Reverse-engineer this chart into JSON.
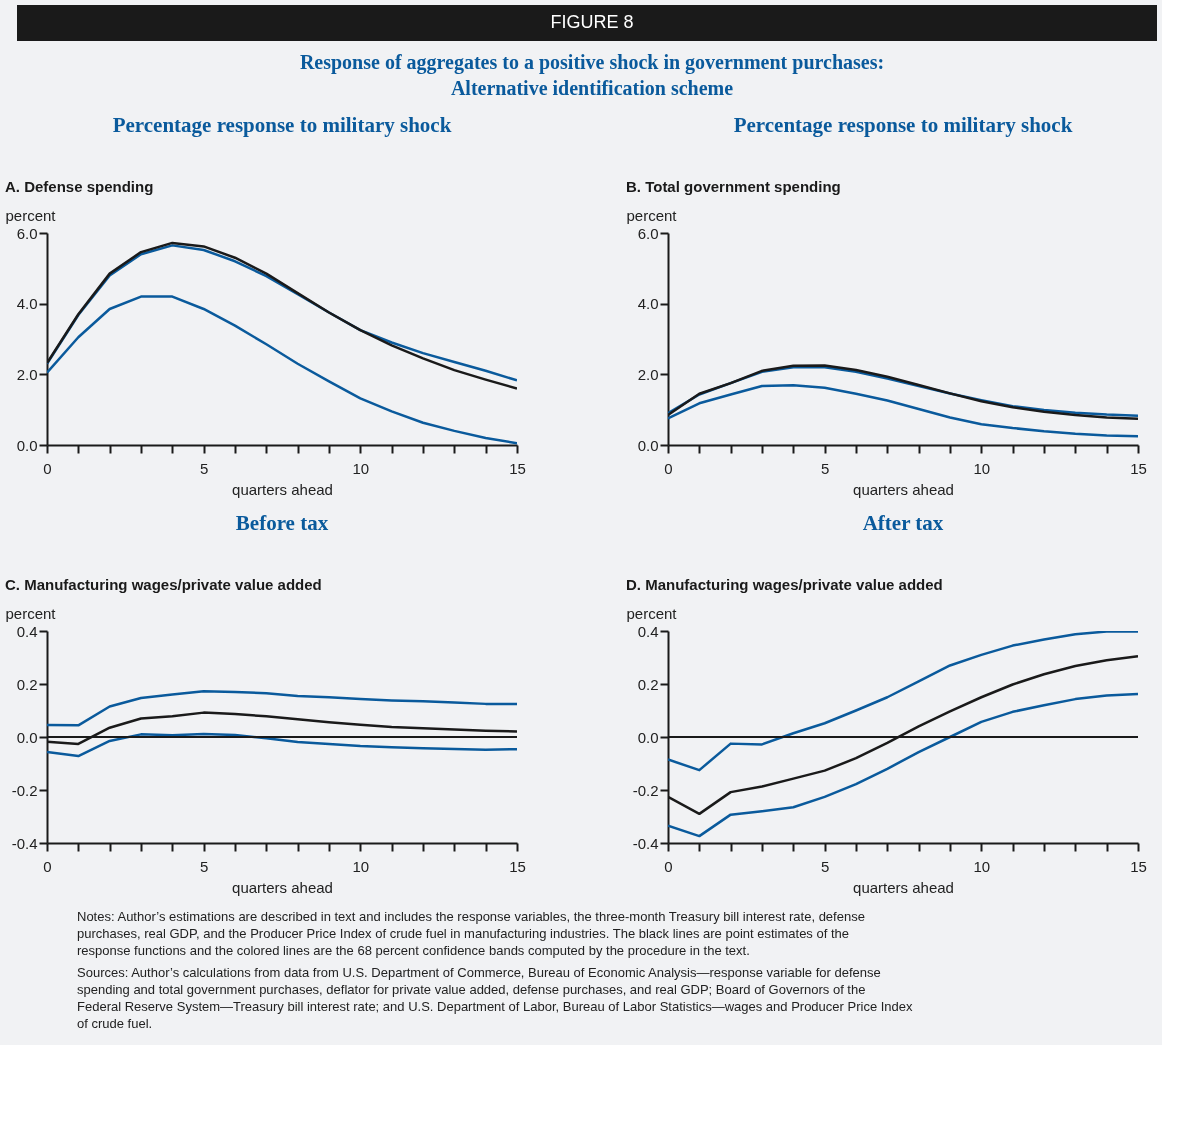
{
  "chart_data": [
    {
      "type": "other",
      "title": "Response of aggregates to a positive shock in government purchases:\nAlternative identification scheme",
      "annotations": [
        "FIGURE 8"
      ]
    },
    {
      "type": "line",
      "title": "Percentage response to military shock",
      "subtitle": "A. Defense spending",
      "ylabel": "percent",
      "xlabel": "quarters ahead",
      "x": [
        0,
        1,
        2,
        3,
        4,
        5,
        6,
        7,
        8,
        9,
        10,
        11,
        12,
        13,
        14,
        15
      ],
      "xlim": [
        0,
        15
      ],
      "ylim": [
        0,
        6
      ],
      "xticks": [
        0,
        {
          "value": 1,
          "label": null
        },
        {
          "value": 2,
          "label": null
        },
        {
          "value": 3,
          "label": null
        },
        {
          "value": 4,
          "label": null
        },
        5,
        {
          "value": 6,
          "label": null
        },
        {
          "value": 7,
          "label": null
        },
        {
          "value": 8,
          "label": null
        },
        {
          "value": 9,
          "label": null
        },
        10,
        {
          "value": 11,
          "label": null
        },
        {
          "value": 12,
          "label": null
        },
        {
          "value": 13,
          "label": null
        },
        {
          "value": 14,
          "label": null
        },
        15
      ],
      "yticks": [
        {
          "value": 0,
          "label": "0.0"
        },
        {
          "value": 2,
          "label": "2.0"
        },
        {
          "value": 4,
          "label": "4.0"
        },
        {
          "value": 6,
          "label": "6.0"
        }
      ],
      "series": [
        {
          "color": "#0a5a9c",
          "values": [
            2.3,
            3.68,
            4.8,
            5.4,
            5.65,
            5.52,
            5.2,
            4.78,
            4.27,
            3.75,
            3.25,
            2.9,
            2.6,
            2.35,
            2.1,
            1.83
          ]
        },
        {
          "color": "#0a5a9c",
          "values": [
            2.05,
            3.05,
            3.85,
            4.2,
            4.2,
            3.85,
            3.38,
            2.85,
            2.3,
            1.8,
            1.32,
            0.95,
            0.63,
            0.4,
            0.2,
            0.05
          ]
        },
        {
          "color": "#1a1a1a",
          "values": [
            2.32,
            3.7,
            4.85,
            5.46,
            5.72,
            5.62,
            5.3,
            4.85,
            4.3,
            3.75,
            3.25,
            2.82,
            2.45,
            2.12,
            1.85,
            1.6
          ]
        }
      ]
    },
    {
      "type": "line",
      "title": "Percentage response to military shock",
      "subtitle": "B. Total government spending",
      "ylabel": "percent",
      "xlabel": "quarters ahead",
      "x": [
        0,
        1,
        2,
        3,
        4,
        5,
        6,
        7,
        8,
        9,
        10,
        11,
        12,
        13,
        14,
        15
      ],
      "xlim": [
        0,
        15
      ],
      "ylim": [
        0,
        6
      ],
      "xticks": [
        0,
        {
          "value": 1,
          "label": null
        },
        {
          "value": 2,
          "label": null
        },
        {
          "value": 3,
          "label": null
        },
        {
          "value": 4,
          "label": null
        },
        5,
        {
          "value": 6,
          "label": null
        },
        {
          "value": 7,
          "label": null
        },
        {
          "value": 8,
          "label": null
        },
        {
          "value": 9,
          "label": null
        },
        10,
        {
          "value": 11,
          "label": null
        },
        {
          "value": 12,
          "label": null
        },
        {
          "value": 13,
          "label": null
        },
        {
          "value": 14,
          "label": null
        },
        15
      ],
      "yticks": [
        {
          "value": 0,
          "label": "0.0"
        },
        {
          "value": 2,
          "label": "2.0"
        },
        {
          "value": 4,
          "label": "4.0"
        },
        {
          "value": 6,
          "label": "6.0"
        }
      ],
      "series": [
        {
          "color": "#0a5a9c",
          "values": [
            0.9,
            1.43,
            1.75,
            2.07,
            2.2,
            2.2,
            2.07,
            1.88,
            1.67,
            1.46,
            1.27,
            1.1,
            0.99,
            0.91,
            0.86,
            0.83
          ]
        },
        {
          "color": "#0a5a9c",
          "values": [
            0.75,
            1.18,
            1.43,
            1.67,
            1.69,
            1.62,
            1.45,
            1.26,
            1.02,
            0.78,
            0.59,
            0.48,
            0.39,
            0.32,
            0.27,
            0.25
          ]
        },
        {
          "color": "#1a1a1a",
          "values": [
            0.85,
            1.45,
            1.75,
            2.1,
            2.24,
            2.25,
            2.12,
            1.93,
            1.7,
            1.46,
            1.24,
            1.07,
            0.94,
            0.85,
            0.78,
            0.74
          ]
        }
      ]
    },
    {
      "type": "line",
      "title": "Before tax",
      "subtitle": "C. Manufacturing wages/private value added",
      "ylabel": "percent",
      "xlabel": "quarters ahead",
      "x": [
        0,
        1,
        2,
        3,
        4,
        5,
        6,
        7,
        8,
        9,
        10,
        11,
        12,
        13,
        14,
        15
      ],
      "xlim": [
        0,
        15
      ],
      "ylim": [
        -0.4,
        0.4
      ],
      "xticks": [
        0,
        {
          "value": 1,
          "label": null
        },
        {
          "value": 2,
          "label": null
        },
        {
          "value": 3,
          "label": null
        },
        {
          "value": 4,
          "label": null
        },
        5,
        {
          "value": 6,
          "label": null
        },
        {
          "value": 7,
          "label": null
        },
        {
          "value": 8,
          "label": null
        },
        {
          "value": 9,
          "label": null
        },
        10,
        {
          "value": 11,
          "label": null
        },
        {
          "value": 12,
          "label": null
        },
        {
          "value": 13,
          "label": null
        },
        {
          "value": 14,
          "label": null
        },
        15
      ],
      "yticks": [
        -0.4,
        -0.2,
        {
          "value": 0,
          "label": "0.0"
        },
        0.2,
        0.4
      ],
      "ref_lines": [
        {
          "axis": "y",
          "value": 0,
          "color": "#1a1a1a"
        }
      ],
      "series": [
        {
          "color": "#0a5a9c",
          "values": [
            0.045,
            0.044,
            0.115,
            0.147,
            0.16,
            0.173,
            0.17,
            0.165,
            0.155,
            0.15,
            0.143,
            0.138,
            0.135,
            0.13,
            0.125,
            0.125
          ]
        },
        {
          "color": "#0a5a9c",
          "values": [
            -0.057,
            -0.072,
            -0.015,
            0.01,
            0.007,
            0.011,
            0.008,
            -0.005,
            -0.019,
            -0.026,
            -0.034,
            -0.039,
            -0.042,
            -0.045,
            -0.048,
            -0.046
          ]
        },
        {
          "color": "#1a1a1a",
          "values": [
            -0.018,
            -0.026,
            0.035,
            0.07,
            0.078,
            0.092,
            0.087,
            0.078,
            0.067,
            0.056,
            0.046,
            0.038,
            0.033,
            0.028,
            0.024,
            0.021
          ]
        }
      ]
    },
    {
      "type": "line",
      "title": "After tax",
      "subtitle": "D. Manufacturing wages/private value added",
      "ylabel": "percent",
      "xlabel": "quarters ahead",
      "x": [
        0,
        1,
        2,
        3,
        4,
        5,
        6,
        7,
        8,
        9,
        10,
        11,
        12,
        13,
        14,
        15
      ],
      "xlim": [
        0,
        15
      ],
      "ylim": [
        -0.4,
        0.4
      ],
      "xticks": [
        0,
        {
          "value": 1,
          "label": null
        },
        {
          "value": 2,
          "label": null
        },
        {
          "value": 3,
          "label": null
        },
        {
          "value": 4,
          "label": null
        },
        5,
        {
          "value": 6,
          "label": null
        },
        {
          "value": 7,
          "label": null
        },
        {
          "value": 8,
          "label": null
        },
        {
          "value": 9,
          "label": null
        },
        10,
        {
          "value": 11,
          "label": null
        },
        {
          "value": 12,
          "label": null
        },
        {
          "value": 13,
          "label": null
        },
        {
          "value": 14,
          "label": null
        },
        15
      ],
      "yticks": [
        -0.4,
        -0.2,
        {
          "value": 0,
          "label": "0.0"
        },
        0.2,
        0.4
      ],
      "ref_lines": [
        {
          "axis": "y",
          "value": 0,
          "color": "#1a1a1a"
        }
      ],
      "series": [
        {
          "color": "#0a5a9c",
          "values": [
            -0.085,
            -0.125,
            -0.025,
            -0.028,
            0.014,
            0.052,
            0.1,
            0.15,
            0.21,
            0.27,
            0.31,
            0.345,
            0.368,
            0.388,
            0.398,
            0.398
          ]
        },
        {
          "color": "#0a5a9c",
          "values": [
            -0.335,
            -0.374,
            -0.293,
            -0.28,
            -0.265,
            -0.226,
            -0.178,
            -0.12,
            -0.057,
            0.0,
            0.057,
            0.095,
            0.12,
            0.143,
            0.157,
            0.162
          ]
        },
        {
          "color": "#1a1a1a",
          "values": [
            -0.226,
            -0.29,
            -0.208,
            -0.187,
            -0.157,
            -0.127,
            -0.08,
            -0.022,
            0.04,
            0.097,
            0.15,
            0.198,
            0.237,
            0.268,
            0.29,
            0.305
          ]
        }
      ]
    },
    {
      "type": "other",
      "annotations": [
        "Notes: Author’s estimations are described in text and includes the response variables, the three-month Treasury bill interest rate, defense purchases, real GDP, and the Producer Price Index of crude fuel in manufacturing industries. The black lines are point estimates of the response functions and the colored lines are the 68 percent confidence bands computed by the procedure in the text.",
        "Sources: Author’s calculations from data from U.S. Department of Commerce, Bureau of Economic Analysis—response variable for defense spending and total government purchases, deflator for private value added, defense purchases, and real GDP; Board of Governors of the Federal Reserve System—Treasury bill interest rate; and U.S. Department of Labor, Bureau of Labor Statistics—wages and Producer Price Index of crude fuel."
      ]
    }
  ]
}
